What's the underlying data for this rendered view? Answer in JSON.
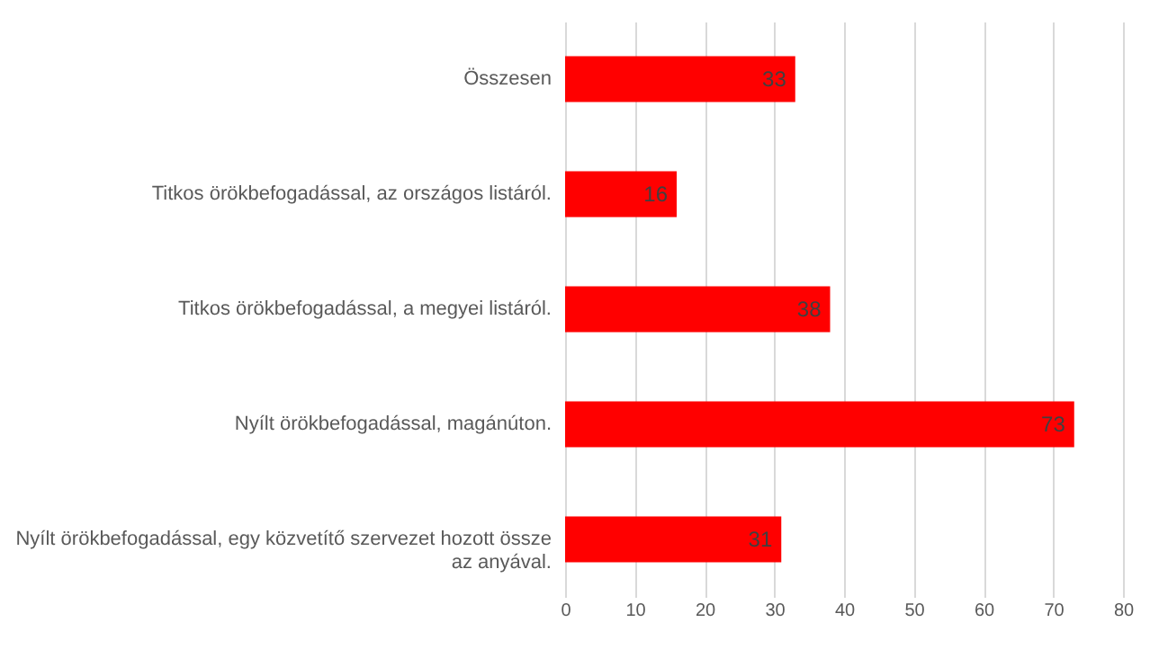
{
  "chart_data": {
    "type": "bar",
    "orientation": "horizontal",
    "categories": [
      "Összesen",
      "Titkos örökbefogadással, az országos listáról.",
      "Titkos örökbefogadással, a megyei listáról.",
      "Nyílt örökbefogadással, magánúton.",
      "Nyílt örökbefogadással, egy közvetítő szervezet hozott össze az anyával."
    ],
    "values": [
      33,
      16,
      38,
      73,
      31
    ],
    "color": "#ff0000",
    "xlim": [
      0,
      80
    ],
    "xticks": [
      0,
      10,
      20,
      30,
      40,
      50,
      60,
      70,
      80
    ],
    "grid": "x",
    "data_labels": true
  }
}
